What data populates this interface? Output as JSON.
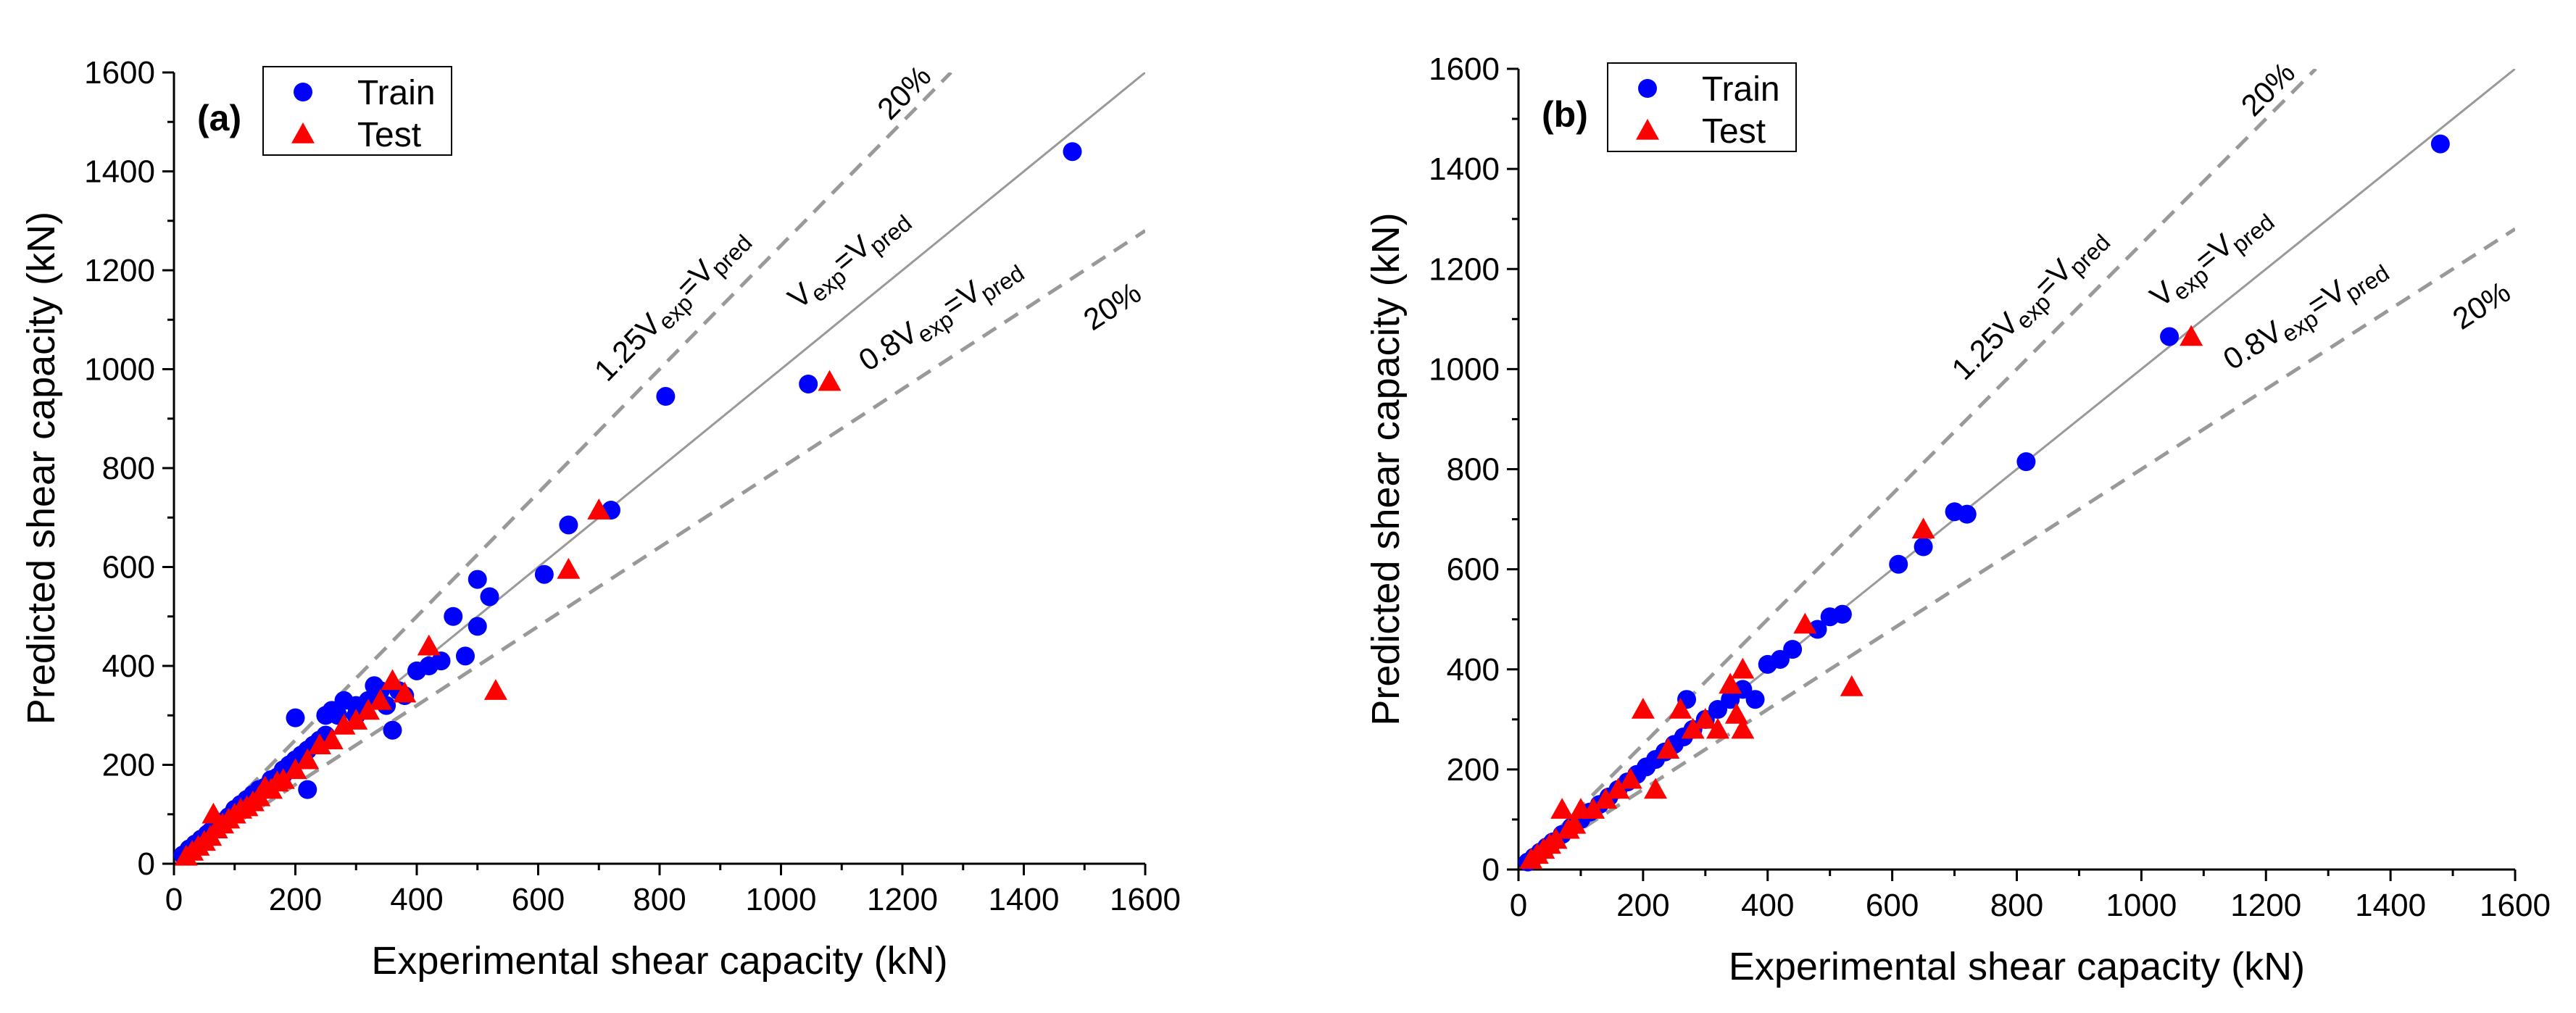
{
  "chart_data": [
    {
      "type": "scatter",
      "panel_label": "(a)",
      "xlabel": "Experimental shear capacity (kN)",
      "ylabel": "Predicted shear capacity (kN)",
      "xlim": [
        0,
        1600
      ],
      "ylim": [
        0,
        1600
      ],
      "xticks": [
        0,
        200,
        400,
        600,
        800,
        1000,
        1200,
        1400,
        1600
      ],
      "yticks": [
        0,
        200,
        400,
        600,
        800,
        1000,
        1200,
        1400,
        1600
      ],
      "legend": {
        "position": "top-left",
        "entries": [
          "Train",
          "Test"
        ]
      },
      "reference_lines": {
        "equality_main": "V",
        "equality_sub1": "exp",
        "equality_mid": "=V",
        "equality_sub2": "pred",
        "upper_prefix": "1.25V",
        "lower_prefix": "0.8V",
        "upper_band": "20%",
        "lower_band": "20%",
        "upper_slope": 1.25,
        "lower_slope": 0.8
      },
      "series": [
        {
          "name": "Train",
          "marker": "circle",
          "color": "#0000ff",
          "points": [
            [
              15,
              18
            ],
            [
              25,
              30
            ],
            [
              35,
              40
            ],
            [
              45,
              50
            ],
            [
              55,
              60
            ],
            [
              60,
              65
            ],
            [
              70,
              80
            ],
            [
              80,
              85
            ],
            [
              90,
              95
            ],
            [
              100,
              110
            ],
            [
              110,
              120
            ],
            [
              120,
              130
            ],
            [
              130,
              140
            ],
            [
              140,
              150
            ],
            [
              150,
              155
            ],
            [
              160,
              170
            ],
            [
              170,
              175
            ],
            [
              180,
              190
            ],
            [
              190,
              200
            ],
            [
              200,
              210
            ],
            [
              210,
              220
            ],
            [
              220,
              150
            ],
            [
              230,
              240
            ],
            [
              240,
              250
            ],
            [
              250,
              260
            ],
            [
              260,
              310
            ],
            [
              270,
              300
            ],
            [
              280,
              330
            ],
            [
              300,
              300
            ],
            [
              320,
              330
            ],
            [
              340,
              350
            ],
            [
              350,
              320
            ],
            [
              360,
              270
            ],
            [
              370,
              350
            ],
            [
              380,
              340
            ],
            [
              400,
              390
            ],
            [
              420,
              400
            ],
            [
              440,
              410
            ],
            [
              460,
              500
            ],
            [
              480,
              420
            ],
            [
              500,
              480
            ],
            [
              500,
              575
            ],
            [
              520,
              540
            ],
            [
              610,
              585
            ],
            [
              650,
              685
            ],
            [
              720,
              715
            ],
            [
              810,
              945
            ],
            [
              1045,
              970
            ],
            [
              1480,
              1440
            ],
            [
              200,
              295
            ],
            [
              220,
              230
            ],
            [
              180,
              180
            ],
            [
              250,
              300
            ],
            [
              300,
              320
            ],
            [
              330,
              360
            ]
          ]
        },
        {
          "name": "Test",
          "marker": "triangle",
          "color": "#ff0000",
          "points": [
            [
              20,
              15
            ],
            [
              30,
              25
            ],
            [
              40,
              35
            ],
            [
              50,
              45
            ],
            [
              60,
              55
            ],
            [
              65,
              100
            ],
            [
              70,
              70
            ],
            [
              80,
              80
            ],
            [
              90,
              90
            ],
            [
              100,
              100
            ],
            [
              110,
              110
            ],
            [
              120,
              115
            ],
            [
              130,
              125
            ],
            [
              140,
              135
            ],
            [
              150,
              155
            ],
            [
              160,
              150
            ],
            [
              170,
              165
            ],
            [
              180,
              170
            ],
            [
              200,
              190
            ],
            [
              220,
              210
            ],
            [
              240,
              240
            ],
            [
              260,
              250
            ],
            [
              280,
              280
            ],
            [
              300,
              290
            ],
            [
              320,
              310
            ],
            [
              340,
              330
            ],
            [
              360,
              370
            ],
            [
              380,
              345
            ],
            [
              420,
              440
            ],
            [
              530,
              350
            ],
            [
              650,
              595
            ],
            [
              700,
              715
            ],
            [
              1080,
              975
            ]
          ]
        }
      ]
    },
    {
      "type": "scatter",
      "panel_label": "(b)",
      "xlabel": "Experimental shear capacity (kN)",
      "ylabel": "Predicted shear capacity (kN)",
      "xlim": [
        0,
        1600
      ],
      "ylim": [
        0,
        1600
      ],
      "xticks": [
        0,
        200,
        400,
        600,
        800,
        1000,
        1200,
        1400,
        1600
      ],
      "yticks": [
        0,
        200,
        400,
        600,
        800,
        1000,
        1200,
        1400,
        1600
      ],
      "legend": {
        "position": "top-left",
        "entries": [
          "Train",
          "Test"
        ]
      },
      "reference_lines": {
        "equality_main": "V",
        "equality_sub1": "exp",
        "equality_mid": "=V",
        "equality_sub2": "pred",
        "upper_prefix": "1.25V",
        "lower_prefix": "0.8V",
        "upper_band": "20%",
        "lower_band": "20%",
        "upper_slope": 1.25,
        "lower_slope": 0.8
      },
      "series": [
        {
          "name": "Train",
          "marker": "circle",
          "color": "#0000ff",
          "points": [
            [
              15,
              15
            ],
            [
              25,
              25
            ],
            [
              35,
              35
            ],
            [
              45,
              45
            ],
            [
              55,
              55
            ],
            [
              70,
              70
            ],
            [
              85,
              85
            ],
            [
              100,
              100
            ],
            [
              115,
              115
            ],
            [
              130,
              130
            ],
            [
              145,
              145
            ],
            [
              160,
              160
            ],
            [
              175,
              175
            ],
            [
              190,
              190
            ],
            [
              205,
              205
            ],
            [
              220,
              220
            ],
            [
              235,
              235
            ],
            [
              250,
              250
            ],
            [
              265,
              265
            ],
            [
              270,
              340
            ],
            [
              280,
              280
            ],
            [
              300,
              300
            ],
            [
              320,
              320
            ],
            [
              340,
              340
            ],
            [
              360,
              360
            ],
            [
              380,
              340
            ],
            [
              400,
              410
            ],
            [
              420,
              420
            ],
            [
              440,
              440
            ],
            [
              480,
              480
            ],
            [
              500,
              505
            ],
            [
              520,
              510
            ],
            [
              610,
              610
            ],
            [
              650,
              645
            ],
            [
              700,
              715
            ],
            [
              720,
              710
            ],
            [
              815,
              815
            ],
            [
              1045,
              1065
            ],
            [
              1480,
              1450
            ]
          ]
        },
        {
          "name": "Test",
          "marker": "triangle",
          "color": "#ff0000",
          "points": [
            [
              20,
              20
            ],
            [
              30,
              30
            ],
            [
              40,
              40
            ],
            [
              50,
              50
            ],
            [
              60,
              60
            ],
            [
              70,
              120
            ],
            [
              80,
              80
            ],
            [
              90,
              90
            ],
            [
              100,
              120
            ],
            [
              120,
              120
            ],
            [
              140,
              140
            ],
            [
              160,
              160
            ],
            [
              180,
              180
            ],
            [
              200,
              320
            ],
            [
              220,
              160
            ],
            [
              240,
              240
            ],
            [
              260,
              320
            ],
            [
              280,
              280
            ],
            [
              300,
              300
            ],
            [
              320,
              280
            ],
            [
              340,
              370
            ],
            [
              350,
              310
            ],
            [
              360,
              400
            ],
            [
              360,
              280
            ],
            [
              460,
              490
            ],
            [
              535,
              365
            ],
            [
              650,
              680
            ],
            [
              1080,
              1065
            ]
          ]
        }
      ]
    }
  ]
}
